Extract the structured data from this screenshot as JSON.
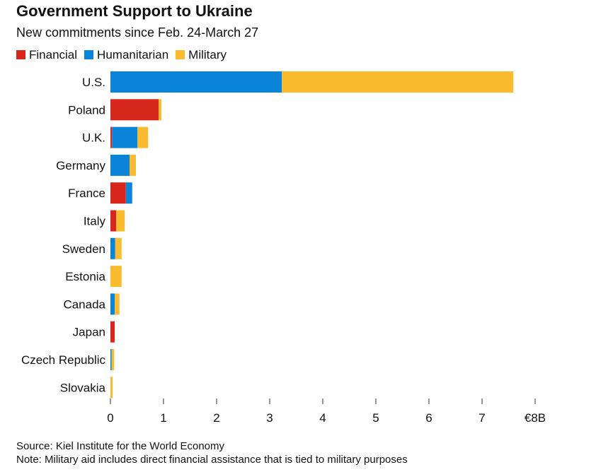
{
  "chart_data": {
    "type": "bar",
    "orientation": "horizontal-stacked",
    "title": "Government Support to Ukraine",
    "subtitle": "New commitments since Feb. 24-March 27",
    "categories": [
      "U.S.",
      "Poland",
      "U.K.",
      "Germany",
      "France",
      "Italy",
      "Sweden",
      "Estonia",
      "Canada",
      "Japan",
      "Czech Republic",
      "Slovakia"
    ],
    "series": [
      {
        "name": "Financial",
        "color": "#d9261c",
        "values": [
          0,
          0.91,
          0.03,
          0,
          0.29,
          0.11,
          0,
          0,
          0,
          0.08,
          0,
          0
        ]
      },
      {
        "name": "Humanitarian",
        "color": "#0a84d8",
        "values": [
          3.23,
          0,
          0.48,
          0.36,
          0.12,
          0,
          0.09,
          0,
          0.08,
          0,
          0.02,
          0
        ]
      },
      {
        "name": "Military",
        "color": "#fbbb2f",
        "values": [
          4.36,
          0.05,
          0.2,
          0.12,
          0,
          0.16,
          0.12,
          0.21,
          0.09,
          0,
          0.05,
          0.04
        ]
      }
    ],
    "xticks": [
      0,
      1,
      2,
      3,
      4,
      5,
      6,
      7,
      8
    ],
    "xtick_labels": [
      "0",
      "1",
      "2",
      "3",
      "4",
      "5",
      "6",
      "7",
      "€8B"
    ],
    "xlim": [
      0,
      8
    ],
    "legend": "top-left",
    "grid": false
  },
  "footer": {
    "source": "Source: Kiel Institute for the World Economy",
    "note": "Note: Military aid includes direct financial assistance that is tied to military purposes"
  }
}
